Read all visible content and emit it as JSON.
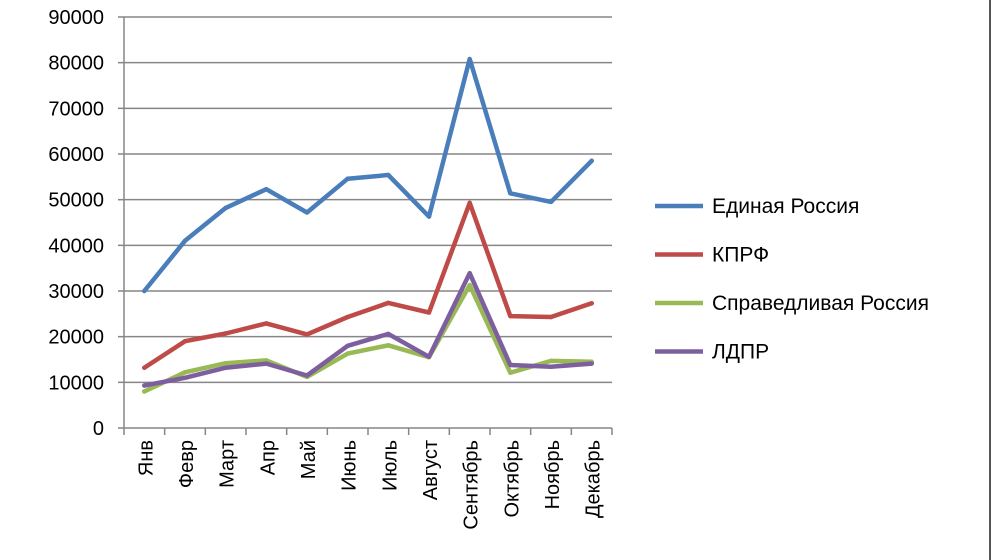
{
  "chart_data": {
    "type": "line",
    "title": "",
    "xlabel": "",
    "ylabel": "",
    "categories": [
      "Янв",
      "Февр",
      "Март",
      "Апр",
      "Май",
      "Июнь",
      "Июль",
      "Август",
      "Сентябрь",
      "Октябрь",
      "Ноябрь",
      "Декабрь"
    ],
    "ylim": [
      0,
      90000
    ],
    "yticks": [
      0,
      10000,
      20000,
      30000,
      40000,
      50000,
      60000,
      70000,
      80000,
      90000
    ],
    "grid": true,
    "legend_position": "right",
    "series": [
      {
        "name": "Единая Россия",
        "color": "#4a7ebb",
        "values": [
          30000,
          41000,
          48200,
          52300,
          47200,
          54600,
          55400,
          46300,
          80800,
          51400,
          49500,
          58500
        ]
      },
      {
        "name": "КПРФ",
        "color": "#be4b48",
        "values": [
          13200,
          19000,
          20700,
          22900,
          20500,
          24300,
          27400,
          25300,
          49300,
          24500,
          24300,
          27300
        ]
      },
      {
        "name": "Справедливая Россия",
        "color": "#98b954",
        "values": [
          8000,
          12200,
          14200,
          14800,
          11200,
          16300,
          18100,
          15500,
          31300,
          12100,
          14700,
          14500
        ]
      },
      {
        "name": "ЛДПР",
        "color": "#7d5fa0",
        "values": [
          9300,
          11000,
          13200,
          14100,
          11500,
          18000,
          20600,
          15600,
          33900,
          13800,
          13400,
          14100
        ]
      }
    ]
  }
}
